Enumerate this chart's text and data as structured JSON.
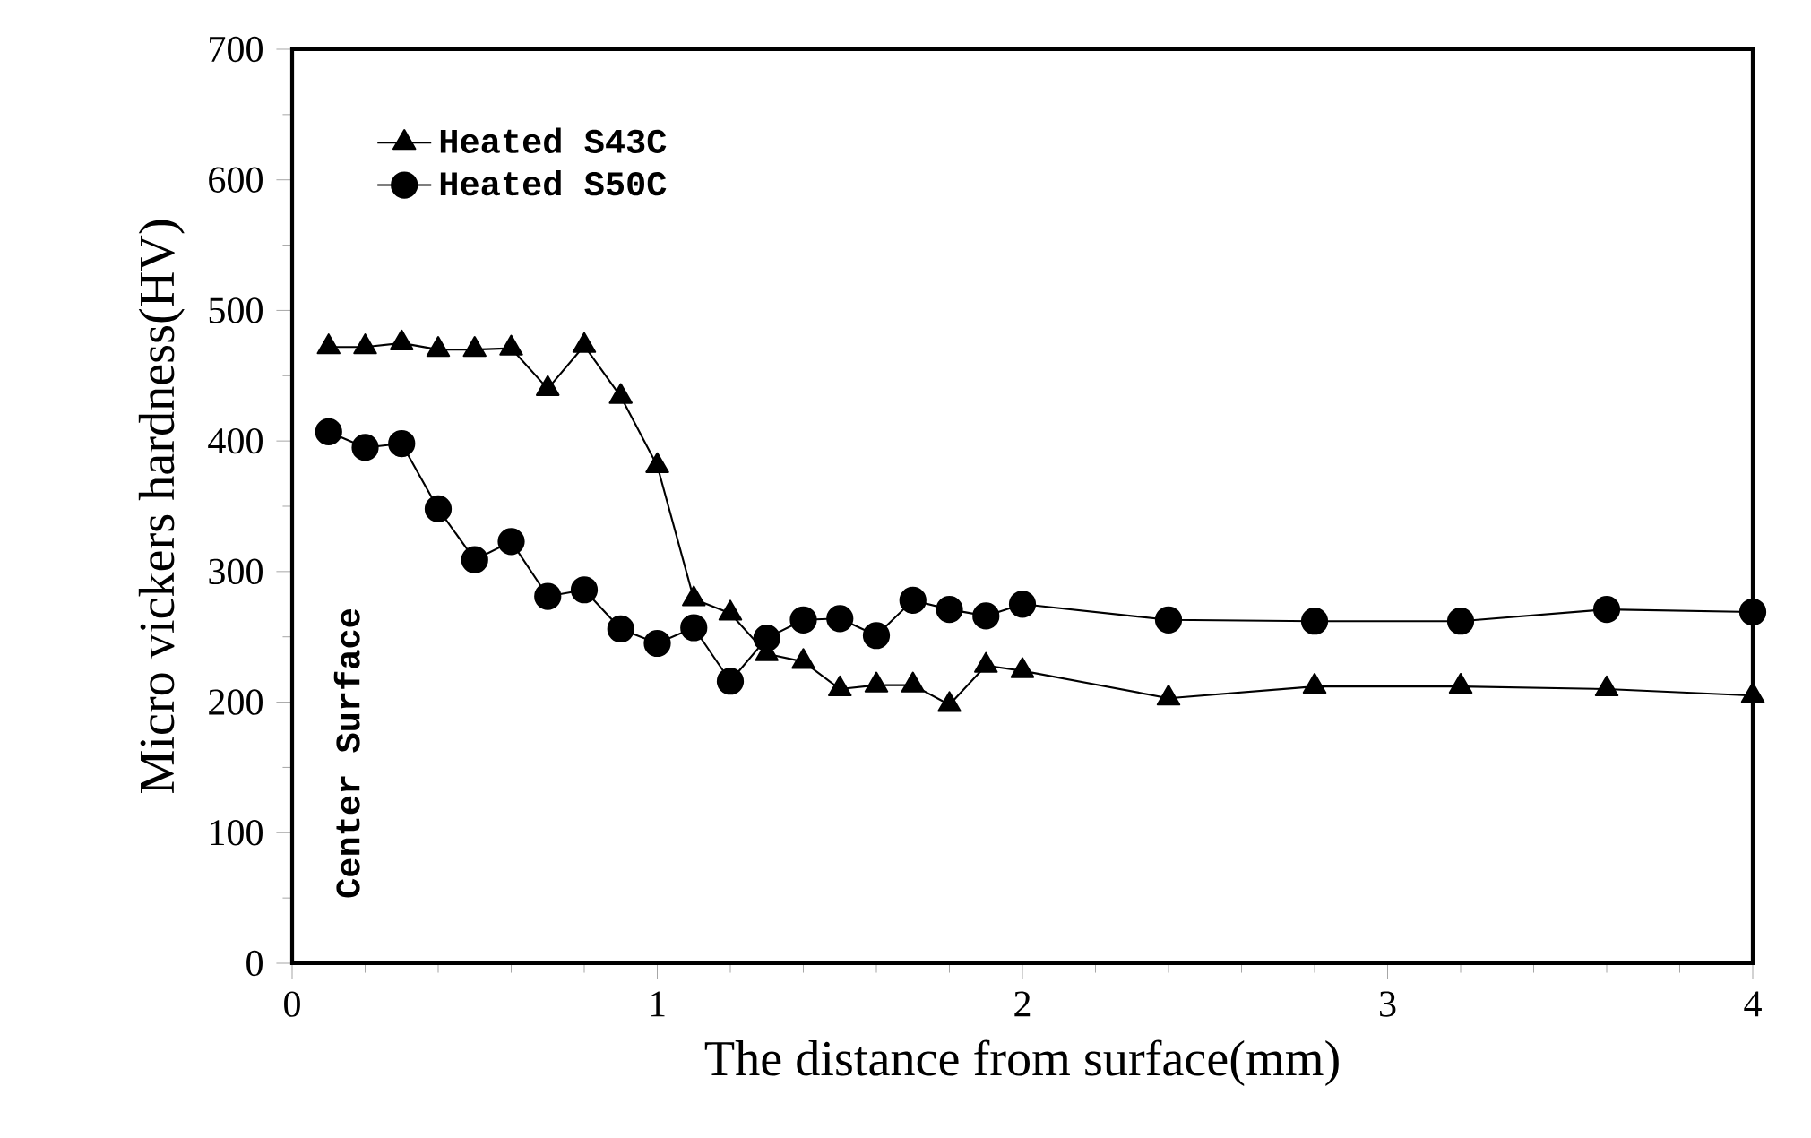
{
  "chart_data": {
    "type": "line",
    "xlabel": "The distance from surface(mm)",
    "ylabel": "Micro vickers hardness(HV)",
    "annotations": [
      "Center Surface"
    ],
    "xlim": [
      0,
      4
    ],
    "xticks": [
      0,
      1,
      2,
      3,
      4
    ],
    "ylim": [
      0,
      700
    ],
    "yticks": [
      0,
      100,
      200,
      300,
      400,
      500,
      600,
      700
    ],
    "grid": false,
    "legend": "top left",
    "line_style": "solid",
    "series": [
      {
        "name": "Heated S43C",
        "color": "#000000",
        "marker": "triangle",
        "x": [
          0.1,
          0.2,
          0.3,
          0.4,
          0.5,
          0.6,
          0.7,
          0.8,
          0.9,
          1.0,
          1.1,
          1.2,
          1.3,
          1.4,
          1.5,
          1.6,
          1.7,
          1.8,
          1.9,
          2.0,
          2.4,
          2.8,
          3.2,
          3.6,
          4.0
        ],
        "values": [
          472,
          472,
          475,
          470,
          470,
          471,
          440,
          473,
          434,
          381,
          279,
          268,
          237,
          231,
          210,
          213,
          213,
          198,
          228,
          224,
          203,
          212,
          212,
          210,
          205
        ]
      },
      {
        "name": "Heated S50C",
        "color": "#000000",
        "marker": "circle",
        "x": [
          0.1,
          0.2,
          0.3,
          0.4,
          0.5,
          0.6,
          0.7,
          0.8,
          0.9,
          1.0,
          1.1,
          1.2,
          1.3,
          1.4,
          1.5,
          1.6,
          1.7,
          1.8,
          1.9,
          2.0,
          2.4,
          2.8,
          3.2,
          3.6,
          4.0
        ],
        "values": [
          407,
          395,
          398,
          348,
          309,
          323,
          281,
          286,
          256,
          245,
          257,
          216,
          249,
          263,
          264,
          251,
          278,
          271,
          266,
          275,
          263,
          262,
          262,
          271,
          269
        ]
      }
    ]
  }
}
